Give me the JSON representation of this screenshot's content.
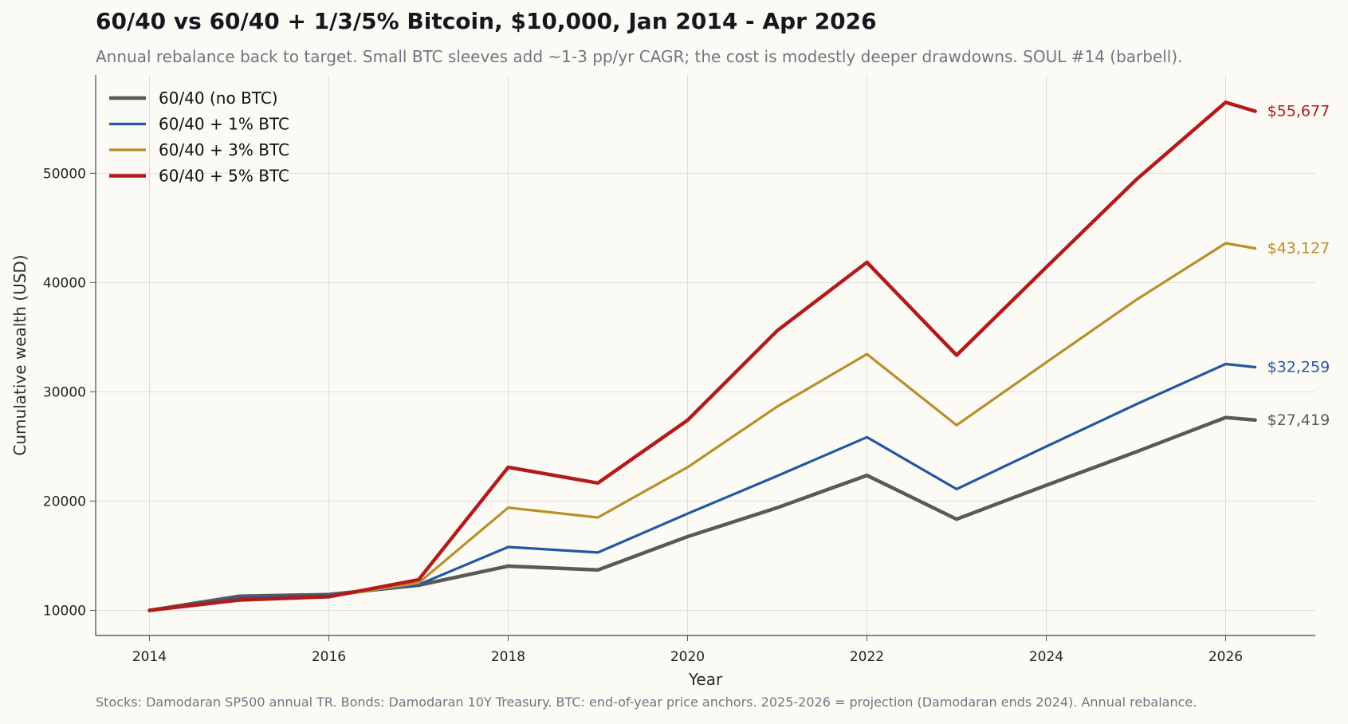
{
  "chart_data": {
    "type": "line",
    "title": "60/40 vs 60/40 + 1/3/5% Bitcoin, $10,000, Jan 2014 - Apr 2026",
    "subtitle": "Annual rebalance back to target. Small BTC sleeves add ~1-3 pp/yr CAGR; the cost is modestly deeper drawdowns. SOUL #14 (barbell).",
    "footnote": "Stocks: Damodaran SP500 annual TR. Bonds: Damodaran 10Y Treasury. BTC: end-of-year price anchors. 2025-2026 = projection (Damodaran ends 2024). Annual rebalance.",
    "xlabel": "Year",
    "ylabel": "Cumulative wealth (USD)",
    "x": [
      2014,
      2015,
      2016,
      2017,
      2018,
      2019,
      2020,
      2021,
      2022,
      2023,
      2024,
      2025,
      2026,
      2026.33
    ],
    "xlim": [
      2013.4,
      2027.0
    ],
    "ylim": [
      7700,
      59000
    ],
    "x_ticks": [
      2014,
      2016,
      2018,
      2020,
      2022,
      2024,
      2026
    ],
    "y_ticks": [
      10000,
      20000,
      30000,
      40000,
      50000
    ],
    "grid": true,
    "legend_position": "top-left",
    "series": [
      {
        "name": "60/40 (no BTC)",
        "color": "#595959",
        "end_label": "$27,419",
        "values": [
          10000,
          11300,
          11450,
          12300,
          14050,
          13700,
          16750,
          19400,
          22350,
          18350,
          21450,
          24500,
          27650,
          27419
        ]
      },
      {
        "name": "60/40 + 1% BTC",
        "color": "#2456a4",
        "end_label": "$32,259",
        "values": [
          10000,
          11100,
          11350,
          12350,
          15800,
          15300,
          18850,
          22300,
          25850,
          21100,
          25000,
          28850,
          32550,
          32259
        ]
      },
      {
        "name": "60/40 + 3% BTC",
        "color": "#b88f2a",
        "end_label": "$43,127",
        "values": [
          10000,
          10900,
          11250,
          12500,
          19400,
          18500,
          23100,
          28650,
          33450,
          26950,
          32700,
          38400,
          43600,
          43127
        ]
      },
      {
        "name": "60/40 + 5% BTC",
        "color": "#b31b1b",
        "end_label": "$55,677",
        "values": [
          10000,
          10950,
          11250,
          12800,
          23100,
          21650,
          27400,
          35600,
          41850,
          33350,
          41400,
          49400,
          56500,
          55677
        ]
      }
    ]
  }
}
